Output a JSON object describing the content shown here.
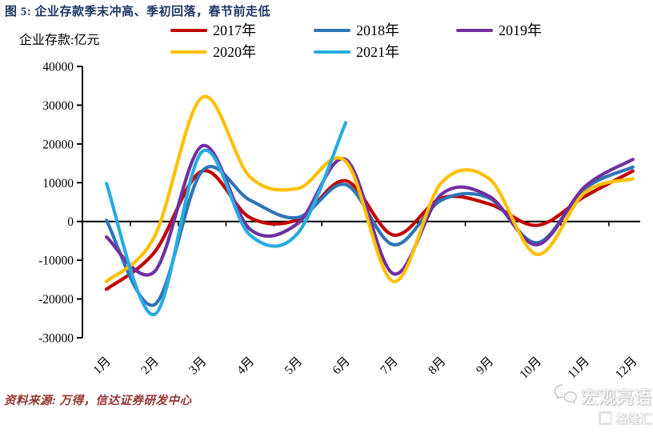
{
  "header": {
    "title": "图 5: 企业存款季末冲高、季初回落，春节前走低"
  },
  "chart_data": {
    "type": "line",
    "title": "企业存款季末冲高、季初回落，春节前走低",
    "ylabel": "企业存款:亿元",
    "xlabel": "",
    "categories": [
      "1月",
      "2月",
      "3月",
      "4月",
      "5月",
      "6月",
      "7月",
      "8月",
      "9月",
      "10月",
      "11月",
      "12月"
    ],
    "ylim": [
      -30000,
      40000
    ],
    "y_ticks": [
      40000,
      30000,
      20000,
      10000,
      0,
      -10000,
      -20000,
      -30000
    ],
    "grid": false,
    "legend_position": "top",
    "line_style": "smooth",
    "series": [
      {
        "name": "2017年",
        "color": "#C00000",
        "values": [
          -17500,
          -8000,
          13000,
          1000,
          500,
          10500,
          -3500,
          6000,
          4500,
          -1000,
          6500,
          13000
        ]
      },
      {
        "name": "2018年",
        "color": "#2E75B6",
        "values": [
          300,
          -21500,
          13000,
          5500,
          1000,
          9500,
          -6000,
          5500,
          6000,
          -5500,
          8500,
          14000
        ]
      },
      {
        "name": "2019年",
        "color": "#7030A0",
        "values": [
          -4000,
          -13000,
          19500,
          -2000,
          -500,
          16000,
          -13500,
          7000,
          6500,
          -6000,
          9000,
          16000
        ]
      },
      {
        "name": "2020年",
        "color": "#FFC000",
        "values": [
          -15500,
          -4000,
          32000,
          11500,
          8500,
          15500,
          -15500,
          10000,
          11000,
          -8500,
          7500,
          11000
        ]
      },
      {
        "name": "2021年",
        "color": "#29ABE2",
        "values": [
          9800,
          -24000,
          18000,
          -3500,
          -3000,
          25500
        ]
      }
    ],
    "axis_color": "#000000"
  },
  "footer": {
    "source": "资料来源: 万得，信达证券研发中心"
  },
  "watermark": {
    "line1": "宏观亮语",
    "line2": "格隆汇"
  }
}
